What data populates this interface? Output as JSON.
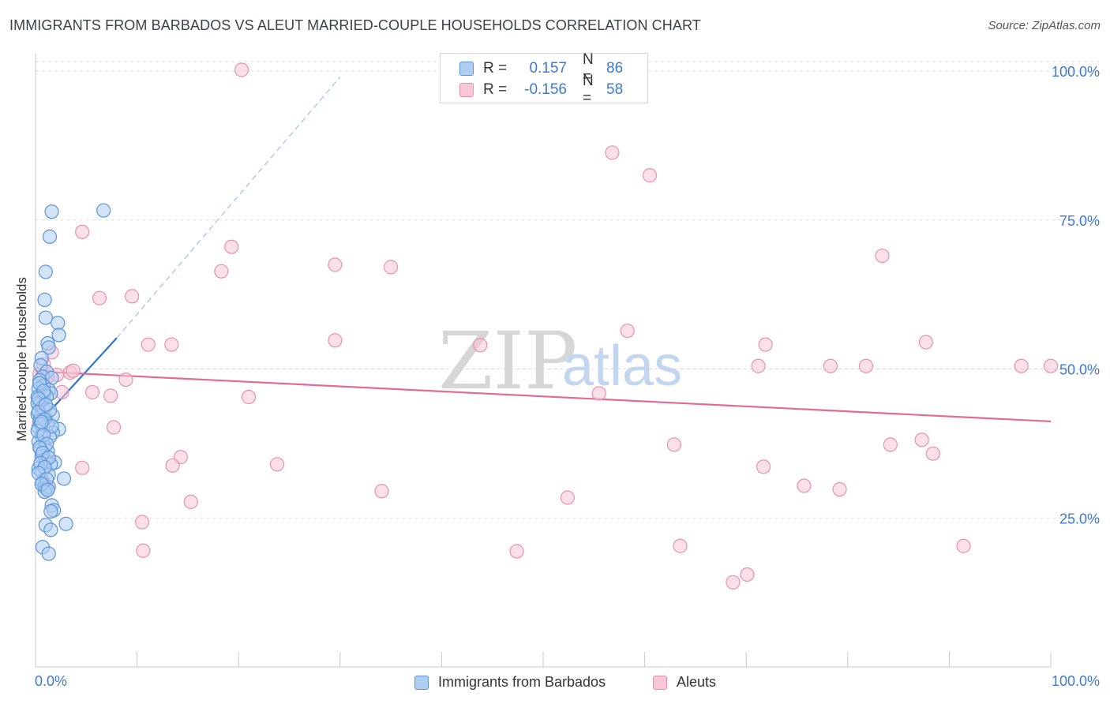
{
  "header": {
    "title": "IMMIGRANTS FROM BARBADOS VS ALEUT MARRIED-COUPLE HOUSEHOLDS CORRELATION CHART",
    "source": "Source: ZipAtlas.com"
  },
  "watermark": {
    "zip": "ZIP",
    "atlas": "atlas"
  },
  "legend": {
    "r_label": "R =",
    "n_label": "N =",
    "entries": [
      {
        "r": "0.157",
        "n": "86"
      },
      {
        "r": "-0.156",
        "n": "58"
      }
    ]
  },
  "colors": {
    "blue_fill": "#aecdf3",
    "blue_stroke": "#5b93d9",
    "blue_line": "#2f74d0",
    "pink_fill": "#f8c6d6",
    "pink_stroke": "#e891af",
    "pink_line": "#e26a97",
    "grid": "#dddddd",
    "axis_text": "#3f78d0"
  },
  "chart_data": {
    "type": "scatter",
    "title": "IMMIGRANTS FROM BARBADOS VS ALEUT MARRIED-COUPLE HOUSEHOLDS CORRELATION CHART",
    "xlabel": "",
    "ylabel": "Married-couple Households",
    "xlim": [
      0,
      100
    ],
    "ylim": [
      0,
      102
    ],
    "x_tick_labels": [
      "0.0%",
      "100.0%"
    ],
    "y_ticks": [
      25,
      50,
      75,
      100
    ],
    "y_tick_labels": [
      "25.0%",
      "50.0%",
      "75.0%",
      "100.0%"
    ],
    "grid": true,
    "series": [
      {
        "name": "Immigrants from Barbados",
        "color": "blue",
        "r": 0.157,
        "n": 86,
        "trend": {
          "x": [
            0,
            8
          ],
          "y": [
            40.3,
            55.2
          ],
          "dashed_to": [
            30,
            99
          ]
        },
        "points": [
          [
            1.6,
            76.4
          ],
          [
            6.7,
            76.6
          ],
          [
            1.4,
            72.2
          ],
          [
            1.0,
            66.3
          ],
          [
            0.9,
            61.6
          ],
          [
            1.0,
            58.6
          ],
          [
            2.2,
            57.7
          ],
          [
            2.3,
            55.7
          ],
          [
            1.2,
            54.3
          ],
          [
            1.3,
            53.6
          ],
          [
            0.6,
            51.8
          ],
          [
            0.5,
            50.6
          ],
          [
            1.1,
            49.5
          ],
          [
            0.7,
            48.7
          ],
          [
            1.6,
            48.5
          ],
          [
            0.4,
            48.1
          ],
          [
            0.8,
            47.2
          ],
          [
            0.3,
            46.7
          ],
          [
            1.3,
            46.5
          ],
          [
            0.9,
            46.0
          ],
          [
            1.5,
            45.9
          ],
          [
            0.2,
            45.3
          ],
          [
            0.6,
            44.6
          ],
          [
            0.4,
            43.9
          ],
          [
            0.8,
            43.2
          ],
          [
            0.2,
            42.4
          ],
          [
            0.5,
            42.0
          ],
          [
            1.0,
            41.8
          ],
          [
            1.7,
            42.2
          ],
          [
            0.4,
            41.3
          ],
          [
            1.2,
            40.7
          ],
          [
            2.3,
            39.9
          ],
          [
            0.3,
            40.2
          ],
          [
            1.7,
            39.3
          ],
          [
            0.6,
            38.8
          ],
          [
            1.4,
            38.6
          ],
          [
            0.3,
            37.8
          ],
          [
            0.9,
            37.0
          ],
          [
            0.5,
            36.5
          ],
          [
            1.2,
            36.2
          ],
          [
            0.6,
            35.3
          ],
          [
            1.9,
            34.3
          ],
          [
            1.0,
            34.6
          ],
          [
            1.5,
            34.0
          ],
          [
            0.3,
            33.3
          ],
          [
            0.6,
            32.8
          ],
          [
            1.3,
            32.2
          ],
          [
            2.8,
            31.6
          ],
          [
            0.7,
            31.0
          ],
          [
            0.9,
            30.4
          ],
          [
            1.0,
            30.0
          ],
          [
            1.3,
            30.2
          ],
          [
            0.9,
            29.4
          ],
          [
            1.6,
            27.1
          ],
          [
            1.8,
            26.3
          ],
          [
            1.5,
            26.1
          ],
          [
            1.0,
            23.8
          ],
          [
            3.0,
            24.0
          ],
          [
            1.5,
            23.0
          ],
          [
            0.7,
            20.1
          ],
          [
            1.3,
            19.0
          ],
          [
            0.4,
            47.6
          ],
          [
            1.1,
            45.4
          ],
          [
            0.2,
            44.2
          ],
          [
            0.7,
            43.6
          ],
          [
            1.4,
            43.1
          ],
          [
            0.3,
            42.8
          ],
          [
            0.9,
            41.5
          ],
          [
            0.5,
            40.8
          ],
          [
            1.6,
            40.4
          ],
          [
            0.2,
            39.6
          ],
          [
            0.8,
            38.9
          ],
          [
            1.1,
            37.4
          ],
          [
            0.4,
            36.8
          ],
          [
            0.7,
            35.9
          ],
          [
            1.3,
            35.1
          ],
          [
            0.5,
            34.2
          ],
          [
            0.9,
            33.5
          ],
          [
            0.3,
            32.5
          ],
          [
            1.1,
            31.5
          ],
          [
            0.6,
            30.7
          ],
          [
            1.2,
            29.7
          ],
          [
            0.8,
            46.3
          ],
          [
            0.3,
            45.0
          ],
          [
            1.0,
            44.0
          ],
          [
            0.6,
            41.1
          ]
        ]
      },
      {
        "name": "Aleuts",
        "color": "pink",
        "r": -0.156,
        "n": 58,
        "trend": {
          "x": [
            0,
            100
          ],
          "y": [
            49.6,
            41.2
          ]
        },
        "points": [
          [
            20.3,
            100.2
          ],
          [
            56.8,
            86.3
          ],
          [
            60.5,
            82.5
          ],
          [
            4.6,
            73.0
          ],
          [
            19.3,
            70.5
          ],
          [
            18.3,
            66.4
          ],
          [
            29.5,
            67.5
          ],
          [
            35.0,
            67.1
          ],
          [
            83.4,
            69.0
          ],
          [
            6.3,
            61.9
          ],
          [
            9.5,
            62.2
          ],
          [
            58.3,
            56.4
          ],
          [
            29.5,
            54.8
          ],
          [
            11.1,
            54.1
          ],
          [
            13.4,
            54.1
          ],
          [
            43.8,
            54.0
          ],
          [
            71.9,
            54.1
          ],
          [
            87.7,
            54.5
          ],
          [
            1.6,
            52.8
          ],
          [
            71.2,
            50.5
          ],
          [
            78.3,
            50.5
          ],
          [
            81.8,
            50.5
          ],
          [
            97.1,
            50.5
          ],
          [
            100.0,
            50.5
          ],
          [
            0.4,
            49.2
          ],
          [
            3.4,
            49.4
          ],
          [
            3.7,
            49.7
          ],
          [
            2.1,
            49.0
          ],
          [
            1.2,
            48.7
          ],
          [
            8.9,
            48.2
          ],
          [
            2.6,
            46.1
          ],
          [
            5.6,
            46.1
          ],
          [
            7.4,
            45.5
          ],
          [
            21.0,
            45.3
          ],
          [
            55.5,
            45.9
          ],
          [
            7.7,
            40.2
          ],
          [
            62.9,
            37.3
          ],
          [
            84.2,
            37.3
          ],
          [
            87.3,
            38.1
          ],
          [
            88.4,
            35.8
          ],
          [
            14.3,
            35.2
          ],
          [
            13.5,
            33.8
          ],
          [
            23.8,
            34.0
          ],
          [
            4.6,
            33.4
          ],
          [
            71.7,
            33.6
          ],
          [
            75.7,
            30.4
          ],
          [
            79.2,
            29.8
          ],
          [
            34.1,
            29.5
          ],
          [
            52.4,
            28.4
          ],
          [
            15.3,
            27.7
          ],
          [
            10.5,
            24.3
          ],
          [
            63.5,
            20.3
          ],
          [
            91.4,
            20.3
          ],
          [
            10.6,
            19.5
          ],
          [
            47.4,
            19.4
          ],
          [
            70.1,
            15.5
          ],
          [
            68.7,
            14.2
          ],
          [
            0.8,
            50.8
          ]
        ]
      }
    ]
  },
  "bottom_legend": [
    "Immigrants from Barbados",
    "Aleuts"
  ]
}
